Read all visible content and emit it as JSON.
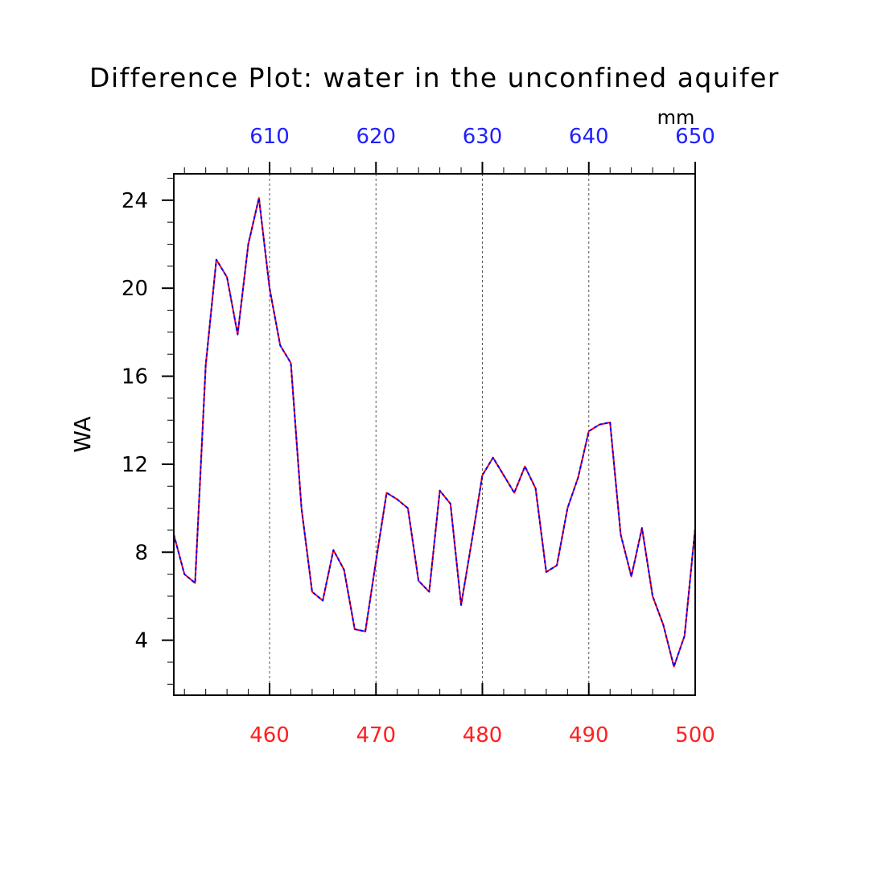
{
  "chart_data": {
    "type": "line",
    "title": "Difference Plot: water in the unconfined aquifer",
    "ylabel": "WA",
    "top_axis_unit": "mm",
    "x_bottom": {
      "range": [
        451,
        500
      ],
      "ticks": [
        460,
        470,
        480,
        490,
        500
      ],
      "minor_step": 2,
      "color": "#ff2020"
    },
    "x_top": {
      "range": [
        601,
        650
      ],
      "ticks": [
        610,
        620,
        630,
        640,
        650
      ],
      "minor_step": 2,
      "color": "#2020ff"
    },
    "ylim": [
      1.5,
      25.2
    ],
    "y_ticks": [
      4,
      8,
      12,
      16,
      20,
      24
    ],
    "y_minor_step": 1,
    "grid": "dashed vertical at major x ticks",
    "series_colors": [
      "#ff0000",
      "#0000ff"
    ],
    "x": [
      451,
      452,
      453,
      454,
      455,
      456,
      457,
      458,
      459,
      460,
      461,
      462,
      463,
      464,
      465,
      466,
      467,
      468,
      469,
      470,
      471,
      472,
      473,
      474,
      475,
      476,
      477,
      478,
      479,
      480,
      481,
      482,
      483,
      484,
      485,
      486,
      487,
      488,
      489,
      490,
      491,
      492,
      493,
      494,
      495,
      496,
      497,
      498,
      499,
      500
    ],
    "series": [
      {
        "values": [
          8.8,
          7.0,
          6.6,
          16.5,
          21.3,
          20.5,
          17.9,
          22.0,
          24.1,
          20.0,
          17.4,
          16.6,
          10.0,
          6.2,
          5.8,
          8.1,
          7.2,
          4.5,
          4.4,
          7.6,
          10.7,
          10.4,
          10.0,
          6.7,
          6.2,
          10.8,
          10.2,
          5.6,
          8.5,
          11.5,
          12.3,
          11.5,
          10.7,
          11.9,
          10.9,
          7.1,
          7.4,
          10.0,
          11.4,
          13.5,
          13.8,
          13.9,
          8.8,
          6.9,
          9.1,
          6.0,
          4.7,
          2.8,
          4.2,
          9.1
        ]
      },
      {
        "values": [
          8.8,
          7.0,
          6.6,
          16.5,
          21.3,
          20.5,
          17.9,
          22.0,
          24.1,
          20.0,
          17.4,
          16.6,
          10.0,
          6.2,
          5.8,
          8.1,
          7.2,
          4.5,
          4.4,
          7.6,
          10.7,
          10.4,
          10.0,
          6.7,
          6.2,
          10.8,
          10.2,
          5.6,
          8.5,
          11.5,
          12.3,
          11.5,
          10.7,
          11.9,
          10.9,
          7.1,
          7.4,
          10.0,
          11.4,
          13.5,
          13.8,
          13.9,
          8.8,
          6.9,
          9.1,
          6.0,
          4.7,
          2.8,
          4.2,
          9.1
        ]
      }
    ]
  }
}
